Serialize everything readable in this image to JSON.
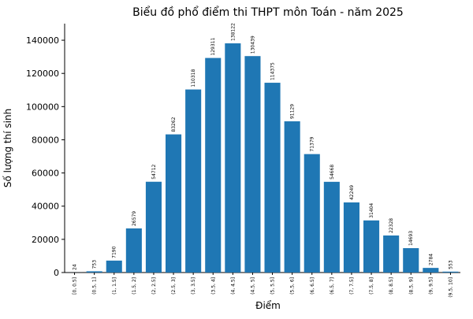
{
  "chart_data": {
    "type": "bar",
    "title": "Biểu đồ phổ điểm thi THPT môn Toán - năm 2025",
    "xlabel": "Điểm",
    "ylabel": "Số lượng thí sinh",
    "ylim": [
      0,
      150000
    ],
    "yticks": [
      "0",
      "20000",
      "40000",
      "60000",
      "80000",
      "100000",
      "120000",
      "140000"
    ],
    "categories": [
      "[0, 0.5]",
      "(0.5, 1]",
      "(1, 1.5]",
      "(1.5, 2]",
      "(2, 2.5]",
      "(2.5, 3]",
      "(3, 3.5]",
      "(3.5, 4]",
      "(4, 4.5]",
      "(4.5, 5]",
      "(5, 5.5]",
      "(5.5, 6]",
      "(6, 6.5]",
      "(6.5, 7]",
      "(7, 7.5]",
      "(7.5, 8]",
      "(8, 8.5]",
      "(8.5, 9]",
      "(9, 9.5]",
      "(9.5, 10]"
    ],
    "values": [
      24,
      753,
      7190,
      26579,
      54712,
      83262,
      110318,
      129311,
      138122,
      130439,
      114375,
      91129,
      71379,
      54668,
      42249,
      31404,
      22328,
      14693,
      2784,
      553
    ],
    "grid": false,
    "legend": "none",
    "colors": {
      "bar": "#1f77b4",
      "axis": "#000000"
    }
  }
}
